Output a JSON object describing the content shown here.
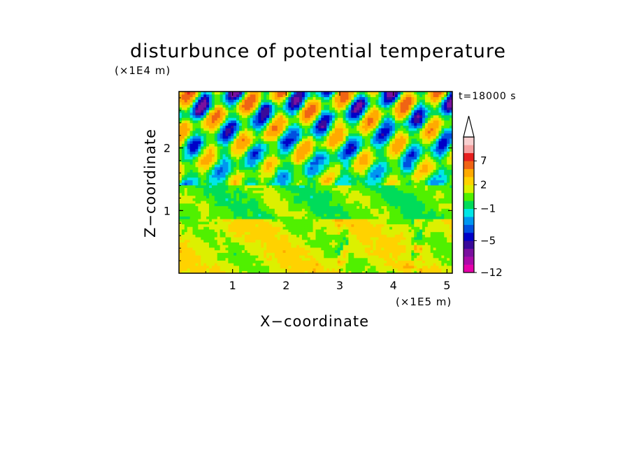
{
  "chart_data": {
    "type": "heatmap",
    "title": "disturbunce of potential temperature",
    "xlabel": "X−coordinate",
    "ylabel": "Z−coordinate",
    "x_unit": "(×1E5 m)",
    "y_unit": "(×1E4 m)",
    "time_label": "t=18000 s",
    "xlim": [
      0,
      5.1
    ],
    "ylim": [
      0,
      2.9
    ],
    "x_ticks": [
      1,
      2,
      3,
      4,
      5
    ],
    "y_ticks": [
      1,
      2
    ],
    "x_tick_labels": [
      "1",
      "2",
      "3",
      "4",
      "5"
    ],
    "y_tick_labels": [
      "1",
      "2"
    ],
    "colorbar": {
      "levels": [
        -12,
        -10,
        -8,
        -6,
        -5,
        -4,
        -3,
        -2,
        -1,
        0,
        1,
        2,
        3,
        5,
        7,
        9,
        12
      ],
      "labeled": [
        {
          "value": 7,
          "label": "7"
        },
        {
          "value": 2,
          "label": "2"
        },
        {
          "value": -1,
          "label": "−1"
        },
        {
          "value": -5,
          "label": "−5"
        },
        {
          "value": -12,
          "label": "−12"
        }
      ],
      "colors": [
        "#e600aa",
        "#aa0aa8",
        "#7a109e",
        "#3a0a9a",
        "#0000c8",
        "#0050e0",
        "#0096f0",
        "#00e6e6",
        "#00dc5a",
        "#50f000",
        "#dcf000",
        "#ffd200",
        "#ffaa00",
        "#f06414",
        "#e61e1e",
        "#f5a0a0",
        "#f8cfcf"
      ],
      "extend_top": true
    }
  }
}
